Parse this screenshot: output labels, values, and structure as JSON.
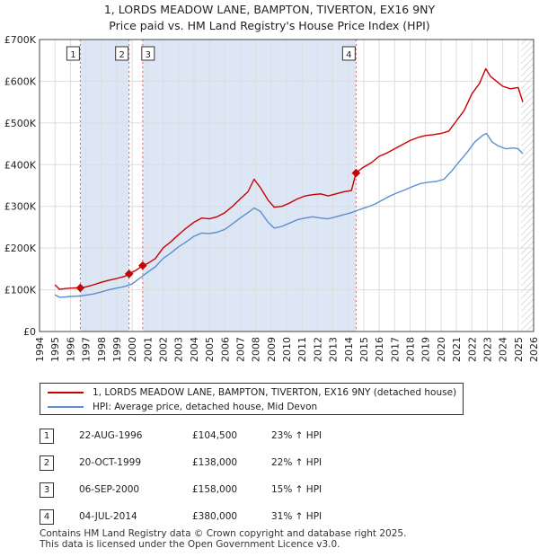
{
  "title_line1": "1, LORDS MEADOW LANE, BAMPTON, TIVERTON, EX16 9NY",
  "title_line2": "Price paid vs. HM Land Registry's House Price Index (HPI)",
  "colors": {
    "property": "#cc0000",
    "hpi": "#5b8fd0",
    "shade": "#dce6f5",
    "marker_line": "#e06060"
  },
  "chart_data": {
    "type": "line",
    "title": "1, LORDS MEADOW LANE, BAMPTON, TIVERTON, EX16 9NY — Price paid vs. HM Land Registry's House Price Index (HPI)",
    "xlim": [
      1994,
      2026
    ],
    "ylim": [
      0,
      700000
    ],
    "x_ticks": [
      1994,
      1995,
      1996,
      1997,
      1998,
      1999,
      2000,
      2001,
      2002,
      2003,
      2004,
      2005,
      2006,
      2007,
      2008,
      2009,
      2010,
      2011,
      2012,
      2013,
      2014,
      2015,
      2016,
      2017,
      2018,
      2019,
      2020,
      2021,
      2022,
      2023,
      2024,
      2025,
      2026
    ],
    "y_ticks": [
      {
        "value": 0,
        "label": "£0"
      },
      {
        "value": 100000,
        "label": "£100K"
      },
      {
        "value": 200000,
        "label": "£200K"
      },
      {
        "value": 300000,
        "label": "£300K"
      },
      {
        "value": 400000,
        "label": "£400K"
      },
      {
        "value": 500000,
        "label": "£500K"
      },
      {
        "value": 600000,
        "label": "£600K"
      },
      {
        "value": 700000,
        "label": "£700K"
      }
    ],
    "shaded_regions": [
      [
        1996.64,
        1999.8
      ],
      [
        2000.68,
        2014.5
      ]
    ],
    "hatched_after": 2025.2,
    "series": [
      {
        "name": "1, LORDS MEADOW LANE, BAMPTON, TIVERTON, EX16 9NY (detached house)",
        "points": [
          [
            1995.0,
            112000
          ],
          [
            1995.3,
            101000
          ],
          [
            1995.7,
            103000
          ],
          [
            1996.0,
            104000
          ],
          [
            1996.3,
            104500
          ],
          [
            1996.64,
            104500
          ],
          [
            1997.0,
            107000
          ],
          [
            1997.5,
            112000
          ],
          [
            1998.0,
            118000
          ],
          [
            1998.5,
            123000
          ],
          [
            1999.0,
            127000
          ],
          [
            1999.5,
            132000
          ],
          [
            1999.8,
            138000
          ],
          [
            2000.3,
            148000
          ],
          [
            2000.68,
            158000
          ],
          [
            2001.0,
            163000
          ],
          [
            2001.5,
            175000
          ],
          [
            2002.0,
            200000
          ],
          [
            2002.5,
            215000
          ],
          [
            2003.0,
            232000
          ],
          [
            2003.5,
            248000
          ],
          [
            2004.0,
            262000
          ],
          [
            2004.5,
            272000
          ],
          [
            2005.0,
            270000
          ],
          [
            2005.5,
            275000
          ],
          [
            2006.0,
            285000
          ],
          [
            2006.5,
            300000
          ],
          [
            2007.0,
            318000
          ],
          [
            2007.5,
            335000
          ],
          [
            2007.9,
            365000
          ],
          [
            2008.3,
            345000
          ],
          [
            2008.8,
            315000
          ],
          [
            2009.2,
            298000
          ],
          [
            2009.7,
            300000
          ],
          [
            2010.2,
            308000
          ],
          [
            2010.7,
            318000
          ],
          [
            2011.2,
            325000
          ],
          [
            2011.7,
            328000
          ],
          [
            2012.2,
            330000
          ],
          [
            2012.7,
            325000
          ],
          [
            2013.2,
            330000
          ],
          [
            2013.7,
            335000
          ],
          [
            2014.2,
            338000
          ],
          [
            2014.5,
            380000
          ],
          [
            2014.9,
            392000
          ],
          [
            2015.5,
            405000
          ],
          [
            2016.0,
            420000
          ],
          [
            2016.5,
            428000
          ],
          [
            2017.0,
            438000
          ],
          [
            2017.5,
            448000
          ],
          [
            2018.0,
            458000
          ],
          [
            2018.5,
            465000
          ],
          [
            2019.0,
            470000
          ],
          [
            2019.5,
            472000
          ],
          [
            2020.0,
            475000
          ],
          [
            2020.5,
            480000
          ],
          [
            2021.0,
            505000
          ],
          [
            2021.5,
            530000
          ],
          [
            2022.0,
            570000
          ],
          [
            2022.5,
            595000
          ],
          [
            2022.9,
            630000
          ],
          [
            2023.2,
            612000
          ],
          [
            2023.6,
            600000
          ],
          [
            2024.0,
            588000
          ],
          [
            2024.5,
            582000
          ],
          [
            2025.0,
            585000
          ],
          [
            2025.3,
            550000
          ]
        ]
      },
      {
        "name": "HPI: Average price, detached house, Mid Devon",
        "points": [
          [
            1995.0,
            88000
          ],
          [
            1995.3,
            82000
          ],
          [
            1995.7,
            83000
          ],
          [
            1996.0,
            84000
          ],
          [
            1996.5,
            85000
          ],
          [
            1997.0,
            87000
          ],
          [
            1997.5,
            90000
          ],
          [
            1998.0,
            95000
          ],
          [
            1998.5,
            100000
          ],
          [
            1999.0,
            104000
          ],
          [
            1999.5,
            108000
          ],
          [
            2000.0,
            114000
          ],
          [
            2000.5,
            128000
          ],
          [
            2001.0,
            142000
          ],
          [
            2001.5,
            155000
          ],
          [
            2002.0,
            175000
          ],
          [
            2002.5,
            188000
          ],
          [
            2003.0,
            203000
          ],
          [
            2003.5,
            215000
          ],
          [
            2004.0,
            228000
          ],
          [
            2004.5,
            236000
          ],
          [
            2005.0,
            235000
          ],
          [
            2005.5,
            238000
          ],
          [
            2006.0,
            245000
          ],
          [
            2006.5,
            258000
          ],
          [
            2007.0,
            272000
          ],
          [
            2007.5,
            285000
          ],
          [
            2007.9,
            296000
          ],
          [
            2008.3,
            288000
          ],
          [
            2008.8,
            262000
          ],
          [
            2009.2,
            248000
          ],
          [
            2009.7,
            252000
          ],
          [
            2010.2,
            260000
          ],
          [
            2010.7,
            268000
          ],
          [
            2011.2,
            272000
          ],
          [
            2011.7,
            275000
          ],
          [
            2012.2,
            272000
          ],
          [
            2012.7,
            270000
          ],
          [
            2013.2,
            275000
          ],
          [
            2013.7,
            280000
          ],
          [
            2014.2,
            285000
          ],
          [
            2014.7,
            292000
          ],
          [
            2015.2,
            298000
          ],
          [
            2015.7,
            305000
          ],
          [
            2016.2,
            315000
          ],
          [
            2016.7,
            325000
          ],
          [
            2017.2,
            333000
          ],
          [
            2017.7,
            340000
          ],
          [
            2018.2,
            348000
          ],
          [
            2018.7,
            355000
          ],
          [
            2019.2,
            358000
          ],
          [
            2019.7,
            360000
          ],
          [
            2020.2,
            365000
          ],
          [
            2020.7,
            385000
          ],
          [
            2021.2,
            408000
          ],
          [
            2021.7,
            430000
          ],
          [
            2022.2,
            455000
          ],
          [
            2022.7,
            470000
          ],
          [
            2022.95,
            475000
          ],
          [
            2023.3,
            455000
          ],
          [
            2023.7,
            445000
          ],
          [
            2024.2,
            438000
          ],
          [
            2024.7,
            440000
          ],
          [
            2025.0,
            438000
          ],
          [
            2025.3,
            426000
          ]
        ]
      }
    ],
    "sales": [
      {
        "num": "1",
        "x": 1996.64,
        "price": 104500,
        "date": "22-AUG-1996",
        "price_label": "£104,500",
        "hpi_diff": "23% ↑ HPI"
      },
      {
        "num": "2",
        "x": 1999.8,
        "price": 138000,
        "date": "20-OCT-1999",
        "price_label": "£138,000",
        "hpi_diff": "22% ↑ HPI"
      },
      {
        "num": "3",
        "x": 2000.68,
        "price": 158000,
        "date": "06-SEP-2000",
        "price_label": "£158,000",
        "hpi_diff": "15% ↑ HPI"
      },
      {
        "num": "4",
        "x": 2014.5,
        "price": 380000,
        "date": "04-JUL-2014",
        "price_label": "£380,000",
        "hpi_diff": "31% ↑ HPI"
      }
    ]
  },
  "legend": {
    "property_label": "1, LORDS MEADOW LANE, BAMPTON, TIVERTON, EX16 9NY (detached house)",
    "hpi_label": "HPI: Average price, detached house, Mid Devon"
  },
  "footer": {
    "line1": "Contains HM Land Registry data © Crown copyright and database right 2025.",
    "line2": "This data is licensed under the Open Government Licence v3.0."
  }
}
